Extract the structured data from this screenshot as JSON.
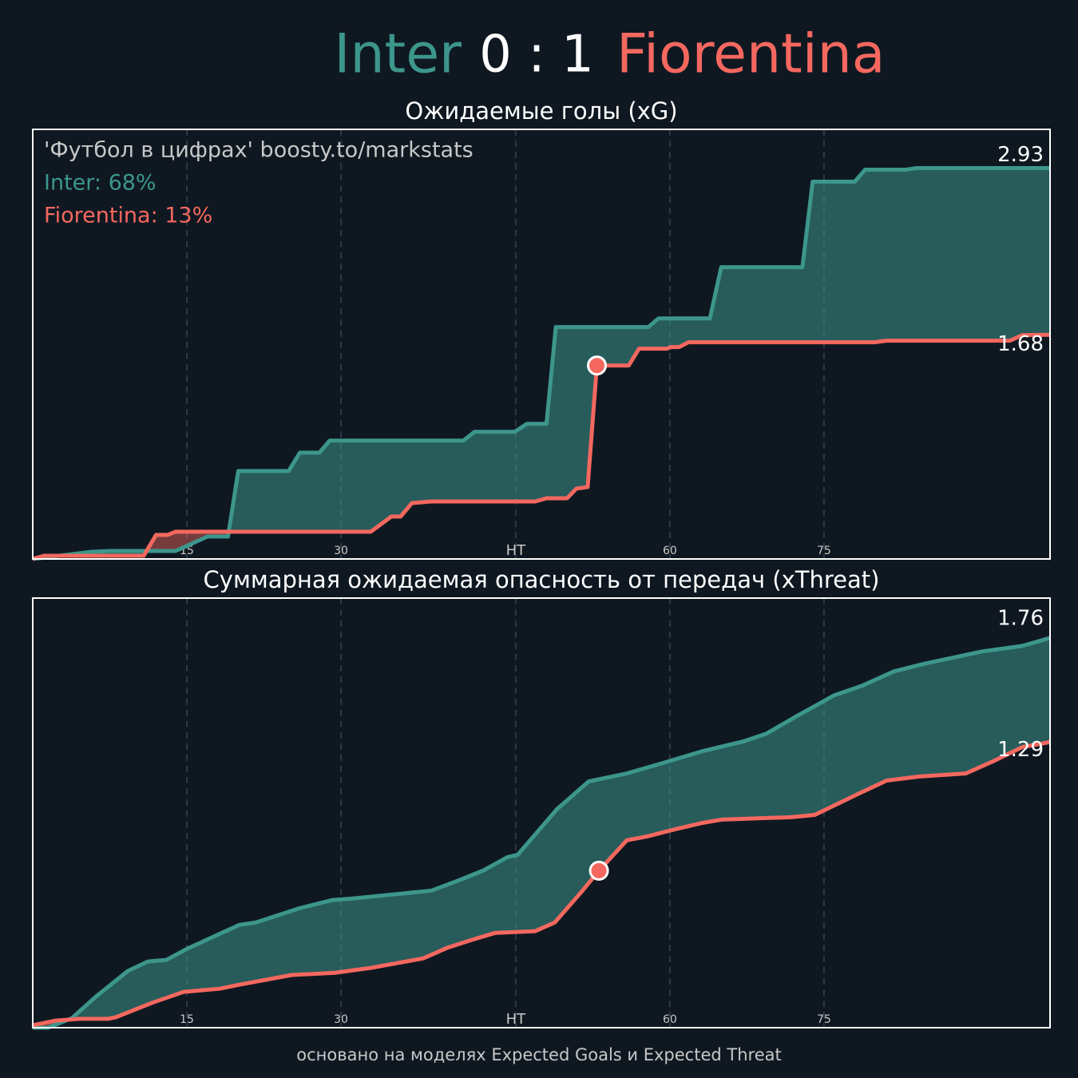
{
  "header": {
    "home": "Inter",
    "score": "0 : 1",
    "away": "Fiorentina"
  },
  "footer": "основано на моделях Expected Goals и Expected Threat",
  "chart_data": [
    {
      "type": "line",
      "title": "Ожидаемые голы (xG)",
      "annotations": [
        "'Футбол в цифрах' boosty.to/markstats",
        "Inter: 68%",
        "Fiorentina: 13%"
      ],
      "xlim": [
        0,
        99
      ],
      "ylim": [
        0,
        3.22
      ],
      "grid": true,
      "xticks": [
        15,
        30,
        {
          "value": 47,
          "label": "HT"
        },
        {
          "value": 62,
          "label": "60"
        },
        {
          "value": 77,
          "label": "75"
        }
      ],
      "series": [
        {
          "name": "Inter",
          "color": "#3d968c",
          "x": [
            0,
            5.75,
            7.69,
            13.9,
            17.0,
            19.0,
            20.0,
            24.9,
            26.0,
            27.9,
            28.9,
            41.9,
            43.0,
            46.9,
            48.1,
            50.0,
            50.9,
            59.9,
            60.9,
            65.9,
            67.0,
            74.9,
            75.9,
            80.0,
            81.0,
            85.0,
            86.0,
            99
          ],
          "values": [
            0,
            0.054,
            0.06,
            0.06,
            0.168,
            0.168,
            0.659,
            0.659,
            0.797,
            0.797,
            0.887,
            0.887,
            0.953,
            0.953,
            1.013,
            1.013,
            1.738,
            1.738,
            1.803,
            1.803,
            2.187,
            2.187,
            2.828,
            2.828,
            2.918,
            2.918,
            2.93,
            2.93
          ]
        },
        {
          "name": "Fiorentina",
          "color": "#f4685f",
          "x": [
            0,
            1.09,
            10.8,
            12.0,
            13.1,
            13.9,
            32.9,
            34.9,
            35.8,
            36.9,
            38.8,
            48.9,
            50.0,
            52.0,
            52.9,
            54.0,
            54.9,
            58.0,
            59.0,
            61.7,
            62.1,
            62.9,
            63.8,
            81.9,
            83.1,
            95.1,
            96.3,
            99
          ],
          "values": [
            0,
            0.024,
            0.024,
            0.18,
            0.18,
            0.204,
            0.204,
            0.318,
            0.318,
            0.419,
            0.431,
            0.431,
            0.455,
            0.455,
            0.527,
            0.539,
            1.45,
            1.45,
            1.576,
            1.576,
            1.588,
            1.588,
            1.624,
            1.624,
            1.636,
            1.636,
            1.678,
            1.68
          ]
        }
      ],
      "marker": {
        "x": 54.9,
        "y": 1.45
      }
    },
    {
      "type": "line",
      "title": "Суммарная ожидаемая опасность от передач (xThreat)",
      "xlim": [
        0,
        99
      ],
      "ylim": [
        0,
        1.94
      ],
      "grid": true,
      "xticks": [
        15,
        30,
        {
          "value": 47,
          "label": "HT"
        },
        {
          "value": 62,
          "label": "60"
        },
        {
          "value": 77,
          "label": "75"
        }
      ],
      "series": [
        {
          "name": "Inter",
          "color": "#3d968c",
          "x": [
            0,
            1.48,
            3.81,
            6.14,
            9.25,
            11.2,
            13.0,
            15.0,
            20.1,
            21.7,
            26.0,
            29.1,
            31.0,
            38.8,
            41.5,
            43.8,
            46.2,
            47.2,
            51.0,
            54.1,
            57.8,
            61.3,
            65.2,
            69.1,
            71.4,
            74.5,
            78.0,
            80.7,
            83.8,
            86.9,
            92.4,
            96.3,
            99
          ],
          "values": [
            0,
            0,
            0.043,
            0.14,
            0.256,
            0.299,
            0.306,
            0.356,
            0.464,
            0.475,
            0.54,
            0.576,
            0.583,
            0.619,
            0.666,
            0.709,
            0.77,
            0.781,
            0.986,
            1.112,
            1.148,
            1.195,
            1.249,
            1.292,
            1.328,
            1.411,
            1.501,
            1.544,
            1.609,
            1.645,
            1.699,
            1.724,
            1.76
          ]
        },
        {
          "name": "Fiorentina",
          "color": "#f4685f",
          "x": [
            0,
            2.25,
            4.58,
            7.3,
            8.08,
            11.6,
            14.7,
            18.2,
            20.1,
            25.2,
            29.4,
            32.9,
            38.0,
            40.3,
            42.7,
            45.0,
            48.9,
            50.8,
            53.5,
            55.1,
            57.8,
            59.8,
            62.5,
            65.2,
            67.1,
            71.4,
            73.7,
            76.1,
            80.3,
            83.1,
            86.2,
            90.8,
            93.6,
            96.3,
            99
          ],
          "values": [
            0.011,
            0.032,
            0.04,
            0.04,
            0.047,
            0.112,
            0.162,
            0.176,
            0.194,
            0.238,
            0.248,
            0.27,
            0.313,
            0.36,
            0.396,
            0.428,
            0.436,
            0.475,
            0.619,
            0.709,
            0.846,
            0.864,
            0.896,
            0.925,
            0.94,
            0.947,
            0.95,
            0.961,
            1.055,
            1.116,
            1.134,
            1.148,
            1.206,
            1.267,
            1.29
          ]
        }
      ],
      "marker": {
        "x": 55.1,
        "y": 0.709
      }
    }
  ]
}
